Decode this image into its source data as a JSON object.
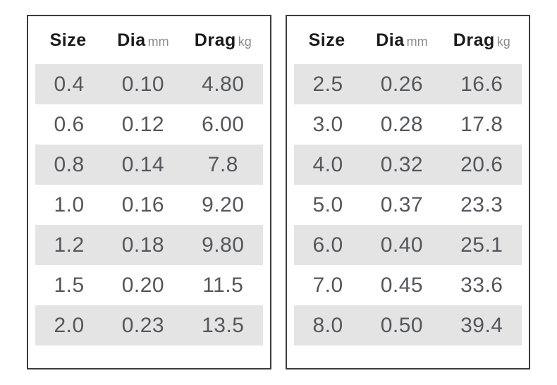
{
  "colors": {
    "stripe": "#e4e4e4",
    "border": "#3c3c3c",
    "header_text": "#1b1b1b",
    "unit_text": "#8b8b8b",
    "value_text": "#55575b",
    "background": "#ffffff"
  },
  "tables": [
    {
      "headers": [
        {
          "label": "Size",
          "unit": ""
        },
        {
          "label": "Dia",
          "unit": "mm"
        },
        {
          "label": "Drag",
          "unit": "kg"
        }
      ],
      "rows": [
        [
          "0.4",
          "0.10",
          "4.80"
        ],
        [
          "0.6",
          "0.12",
          "6.00"
        ],
        [
          "0.8",
          "0.14",
          "7.8"
        ],
        [
          "1.0",
          "0.16",
          "9.20"
        ],
        [
          "1.2",
          "0.18",
          "9.80"
        ],
        [
          "1.5",
          "0.20",
          "11.5"
        ],
        [
          "2.0",
          "0.23",
          "13.5"
        ]
      ]
    },
    {
      "headers": [
        {
          "label": "Size",
          "unit": ""
        },
        {
          "label": "Dia",
          "unit": "mm"
        },
        {
          "label": "Drag",
          "unit": "kg"
        }
      ],
      "rows": [
        [
          "2.5",
          "0.26",
          "16.6"
        ],
        [
          "3.0",
          "0.28",
          "17.8"
        ],
        [
          "4.0",
          "0.32",
          "20.6"
        ],
        [
          "5.0",
          "0.37",
          "23.3"
        ],
        [
          "6.0",
          "0.40",
          "25.1"
        ],
        [
          "7.0",
          "0.45",
          "33.6"
        ],
        [
          "8.0",
          "0.50",
          "39.4"
        ]
      ]
    }
  ]
}
